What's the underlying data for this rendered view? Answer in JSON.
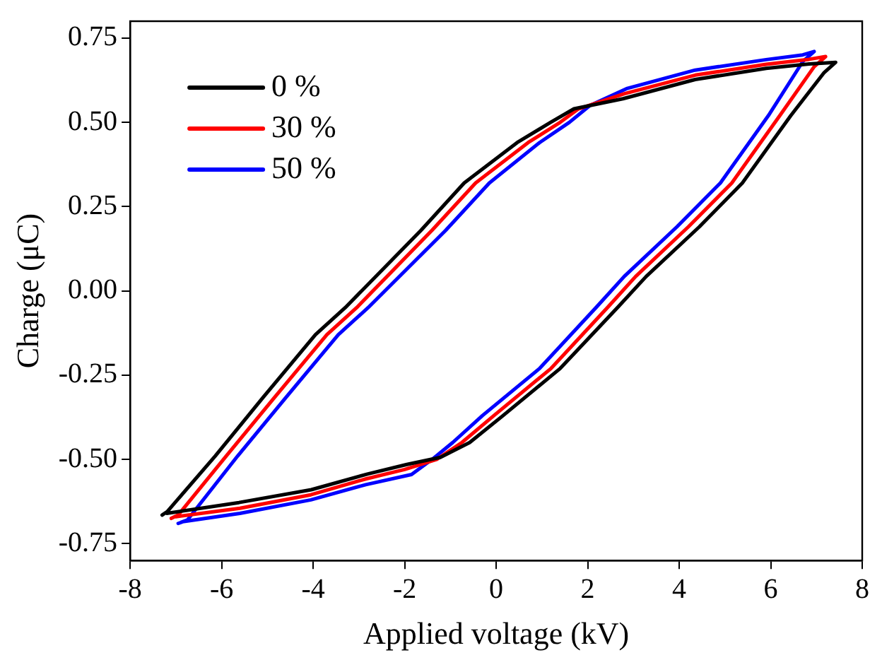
{
  "chart_data": {
    "type": "line",
    "xlabel": "Applied voltage (kV)",
    "ylabel": "Charge (μC)",
    "xlim": [
      -8,
      8
    ],
    "xticks": [
      -8,
      -6,
      -4,
      -2,
      0,
      2,
      4,
      6,
      8
    ],
    "ylim": [
      -0.8,
      0.8
    ],
    "yticks": [
      {
        "value": -0.75,
        "label": "-0.75"
      },
      {
        "value": -0.5,
        "label": "-0.50"
      },
      {
        "value": -0.25,
        "label": "-0.25"
      },
      {
        "value": 0,
        "label": "0.00"
      },
      {
        "value": 0.25,
        "label": "0.25"
      },
      {
        "value": 0.5,
        "label": "0.50"
      },
      {
        "value": 0.75,
        "label": "0.75"
      }
    ],
    "grid": false,
    "legend": "top left",
    "marker": "none",
    "line_style": "solid",
    "series": [
      {
        "name": "0 %",
        "color": "#000000",
        "x": [
          -7.3,
          -7.19,
          -6.14,
          -5.1,
          -3.95,
          -3.3,
          -1.64,
          -0.7,
          0.46,
          1.19,
          1.7,
          2.77,
          4.35,
          5.9,
          6.84,
          7.42,
          7.17,
          6.44,
          5.38,
          4.44,
          3.28,
          2.67,
          1.4,
          0.15,
          -0.58,
          -1.22,
          -1.95,
          -2.8,
          -4.04,
          -5.62,
          -7.2
        ],
        "values": [
          -0.665,
          -0.655,
          -0.49,
          -0.317,
          -0.13,
          -0.05,
          0.18,
          0.32,
          0.44,
          0.5,
          0.54,
          0.57,
          0.627,
          0.66,
          0.673,
          0.678,
          0.648,
          0.52,
          0.32,
          0.19,
          0.043,
          -0.047,
          -0.23,
          -0.37,
          -0.45,
          -0.494,
          -0.515,
          -0.543,
          -0.59,
          -0.628,
          -0.66
        ]
      },
      {
        "name": "30 %",
        "color": "#ff0000",
        "x": [
          -7.1,
          -6.95,
          -5.9,
          -4.85,
          -3.7,
          -3.05,
          -1.4,
          -0.45,
          0.7,
          1.4,
          1.8,
          2.8,
          4.35,
          5.9,
          6.84,
          7.2,
          6.95,
          6.2,
          5.15,
          4.2,
          3.05,
          2.45,
          1.2,
          -0.05,
          -0.75,
          -1.3,
          -2,
          -2.85,
          -4.05,
          -5.6,
          -7
        ],
        "values": [
          -0.675,
          -0.665,
          -0.49,
          -0.317,
          -0.13,
          -0.05,
          0.18,
          0.32,
          0.44,
          0.5,
          0.54,
          0.585,
          0.64,
          0.672,
          0.687,
          0.695,
          0.665,
          0.52,
          0.32,
          0.19,
          0.043,
          -0.047,
          -0.23,
          -0.37,
          -0.45,
          -0.5,
          -0.53,
          -0.558,
          -0.605,
          -0.645,
          -0.67
        ]
      },
      {
        "name": "50 %",
        "color": "#0000ff",
        "x": [
          -6.95,
          -6.75,
          -5.65,
          -4.6,
          -3.45,
          -2.8,
          -1.1,
          -0.15,
          0.95,
          1.6,
          2.05,
          2.85,
          4.35,
          5.9,
          6.7,
          6.95,
          6.7,
          5.95,
          4.9,
          3.95,
          2.8,
          2.2,
          0.95,
          -0.3,
          -0.95,
          -1.4,
          -1.85,
          -2.85,
          -4.05,
          -5.6,
          -6.85
        ],
        "values": [
          -0.69,
          -0.68,
          -0.49,
          -0.317,
          -0.13,
          -0.05,
          0.18,
          0.32,
          0.44,
          0.5,
          0.55,
          0.6,
          0.655,
          0.686,
          0.7,
          0.71,
          0.68,
          0.52,
          0.32,
          0.19,
          0.043,
          -0.047,
          -0.23,
          -0.37,
          -0.45,
          -0.5,
          -0.545,
          -0.575,
          -0.62,
          -0.66,
          -0.685
        ]
      }
    ]
  }
}
